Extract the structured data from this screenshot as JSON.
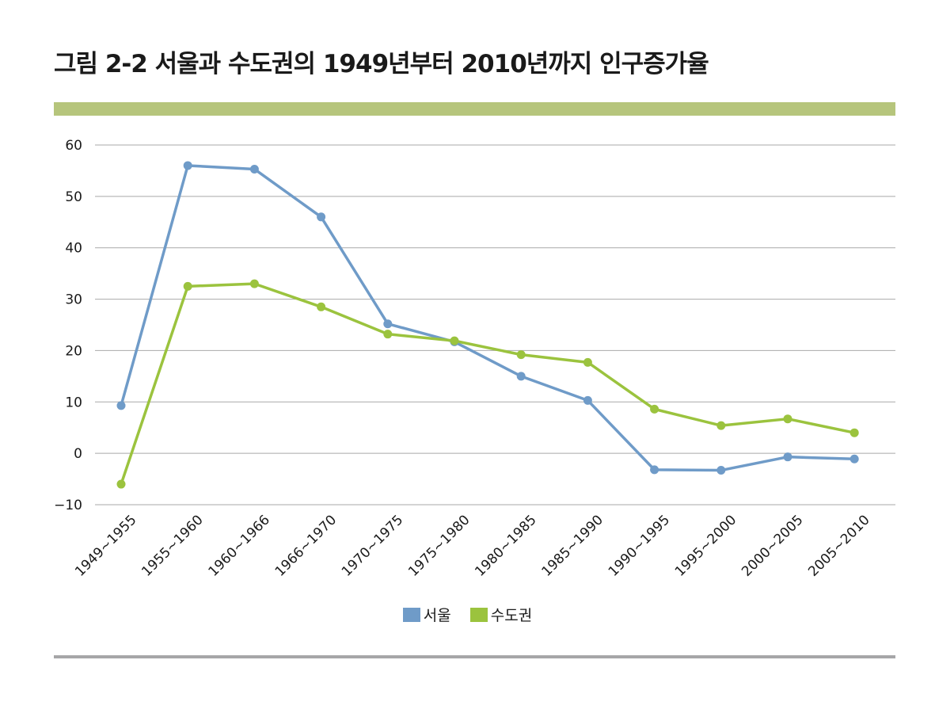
{
  "title": "그림 2-2 서울과 수도권의 1949년부터 2010년까지 인구증가율",
  "colors": {
    "band": "#b6c57c",
    "rule": "#a6a6a8",
    "grid": "#a9a9a9"
  },
  "chart_data": {
    "type": "line",
    "title": "그림 2-2 서울과 수도권의 1949년부터 2010년까지 인구증가율",
    "xlabel": "",
    "ylabel": "",
    "categories": [
      "1949~1955",
      "1955~1960",
      "1960~1966",
      "1966~1970",
      "1970~1975",
      "1975~1980",
      "1980~1985",
      "1985~1990",
      "1990~1995",
      "1995~2000",
      "2000~2005",
      "2005~2010"
    ],
    "ylim": [
      -10,
      60
    ],
    "yticks": [
      60,
      50,
      40,
      30,
      20,
      10,
      0,
      -10
    ],
    "ytick_labels": [
      "60",
      "50",
      "40",
      "30",
      "20",
      "10",
      "0",
      "−10"
    ],
    "grid": true,
    "legend": "bottom",
    "series": [
      {
        "name": "서울",
        "color": "#6f9bc8",
        "values": [
          9.3,
          56.0,
          55.3,
          46.0,
          25.2,
          21.7,
          15.0,
          10.3,
          -3.2,
          -3.3,
          -0.7,
          -1.1
        ]
      },
      {
        "name": "수도권",
        "color": "#9bc33e",
        "values": [
          -6.0,
          32.5,
          33.0,
          28.5,
          23.2,
          21.9,
          19.2,
          17.7,
          8.6,
          5.4,
          6.7,
          4.0
        ]
      }
    ]
  }
}
